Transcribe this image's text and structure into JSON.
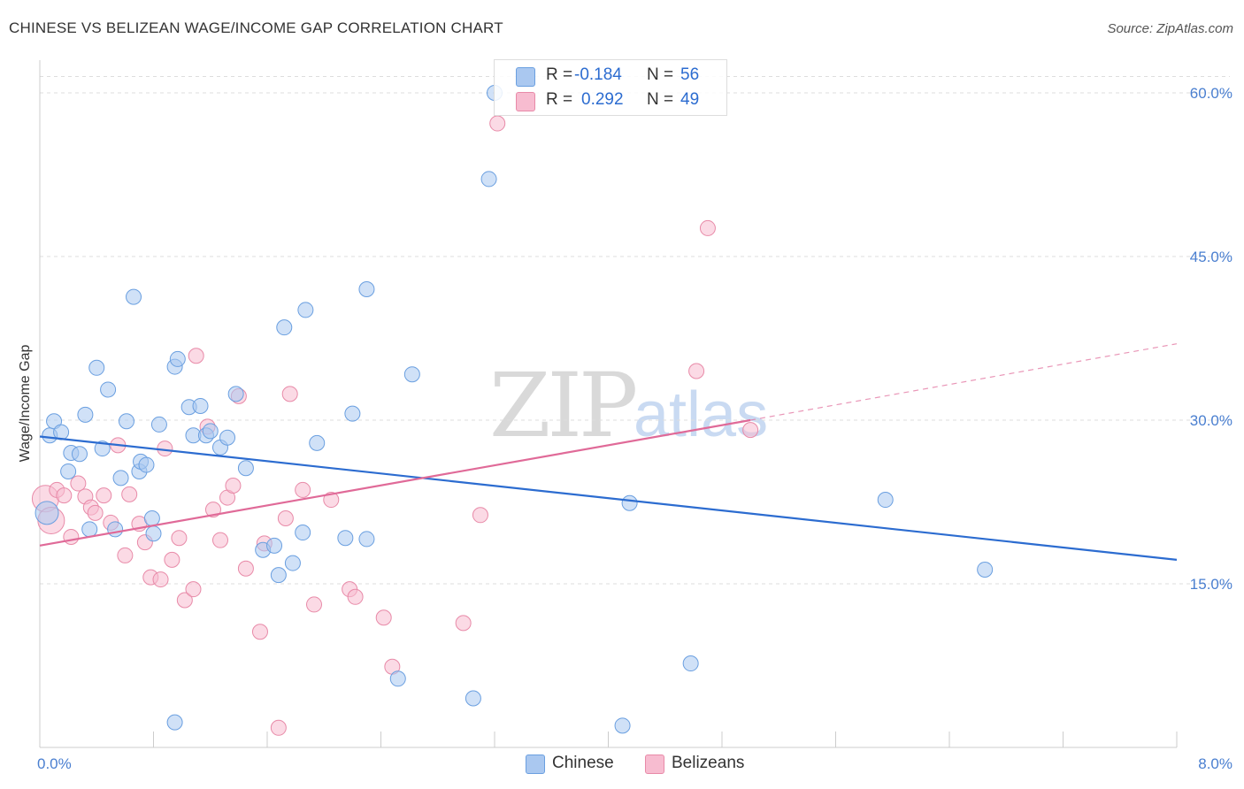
{
  "header": {
    "title": "CHINESE VS BELIZEAN WAGE/INCOME GAP CORRELATION CHART",
    "source": "Source: ZipAtlas.com"
  },
  "watermark": {
    "zip": "ZIP",
    "atlas": "atlas"
  },
  "legend": {
    "rows": [
      {
        "r_label": "R =",
        "r_value": "-0.184",
        "n_label": "N =",
        "n_value": "56"
      },
      {
        "r_label": "R =",
        "r_value": "0.292",
        "n_label": "N =",
        "n_value": "49"
      }
    ]
  },
  "bottom_legend": {
    "chinese": "Chinese",
    "belizeans": "Belizeans"
  },
  "colors": {
    "chinese_fill": "#aac8f0",
    "chinese_stroke": "#6a9fe0",
    "chinese_line": "#2c6cd0",
    "belizean_fill": "#f7bcd0",
    "belizean_stroke": "#e88aa8",
    "belizean_line": "#e06a98",
    "grid": "#dddddd",
    "tick_text": "#4a7fd0"
  },
  "chart_data": {
    "type": "scatter",
    "ylabel": "Wage/Income Gap",
    "xlabel": "",
    "xlim": [
      0,
      8
    ],
    "ylim": [
      0,
      63
    ],
    "y_ticks": [
      15,
      30,
      45,
      60
    ],
    "y_tick_labels": [
      "15.0%",
      "30.0%",
      "45.0%",
      "60.0%"
    ],
    "x_tick_labels": [
      "0.0%",
      "8.0%"
    ],
    "series": [
      {
        "name": "Chinese",
        "points": [
          [
            0.05,
            21.5
          ],
          [
            0.07,
            28.6
          ],
          [
            0.1,
            29.9
          ],
          [
            0.15,
            28.9
          ],
          [
            0.2,
            25.3
          ],
          [
            0.22,
            27.0
          ],
          [
            0.28,
            26.9
          ],
          [
            0.32,
            30.5
          ],
          [
            0.35,
            20.0
          ],
          [
            0.4,
            34.8
          ],
          [
            0.44,
            27.4
          ],
          [
            0.48,
            32.8
          ],
          [
            0.53,
            20.0
          ],
          [
            0.57,
            24.7
          ],
          [
            0.61,
            29.9
          ],
          [
            0.66,
            41.3
          ],
          [
            0.7,
            25.3
          ],
          [
            0.71,
            26.2
          ],
          [
            0.75,
            25.9
          ],
          [
            0.8,
            19.6
          ],
          [
            0.79,
            21.0
          ],
          [
            0.84,
            29.6
          ],
          [
            0.95,
            34.9
          ],
          [
            0.97,
            35.6
          ],
          [
            1.05,
            31.2
          ],
          [
            1.08,
            28.6
          ],
          [
            1.13,
            31.3
          ],
          [
            1.17,
            28.6
          ],
          [
            1.2,
            29.0
          ],
          [
            1.27,
            27.5
          ],
          [
            1.32,
            28.4
          ],
          [
            1.38,
            32.4
          ],
          [
            1.45,
            25.6
          ],
          [
            1.57,
            18.1
          ],
          [
            1.65,
            18.5
          ],
          [
            1.68,
            15.8
          ],
          [
            1.72,
            38.5
          ],
          [
            1.78,
            16.9
          ],
          [
            1.85,
            19.7
          ],
          [
            1.87,
            40.1
          ],
          [
            1.95,
            27.9
          ],
          [
            2.15,
            19.2
          ],
          [
            2.2,
            30.6
          ],
          [
            2.3,
            42.0
          ],
          [
            2.3,
            19.1
          ],
          [
            2.52,
            6.3
          ],
          [
            2.62,
            34.2
          ],
          [
            3.05,
            4.5
          ],
          [
            3.16,
            52.1
          ],
          [
            3.2,
            60.0
          ],
          [
            0.95,
            2.3
          ],
          [
            4.1,
            2.0
          ],
          [
            4.15,
            22.4
          ],
          [
            4.58,
            7.7
          ],
          [
            5.95,
            22.7
          ],
          [
            6.65,
            16.3
          ]
        ],
        "trend": [
          [
            0,
            28.5
          ],
          [
            8,
            17.2
          ]
        ]
      },
      {
        "name": "Belizeans",
        "points": [
          [
            0.04,
            22.8
          ],
          [
            0.08,
            20.8
          ],
          [
            0.12,
            23.6
          ],
          [
            0.17,
            23.1
          ],
          [
            0.22,
            19.3
          ],
          [
            0.27,
            24.2
          ],
          [
            0.32,
            23.0
          ],
          [
            0.36,
            22.0
          ],
          [
            0.39,
            21.5
          ],
          [
            0.45,
            23.1
          ],
          [
            0.5,
            20.6
          ],
          [
            0.55,
            27.7
          ],
          [
            0.6,
            17.6
          ],
          [
            0.63,
            23.2
          ],
          [
            0.7,
            20.5
          ],
          [
            0.74,
            18.8
          ],
          [
            0.78,
            15.6
          ],
          [
            0.85,
            15.4
          ],
          [
            0.88,
            27.4
          ],
          [
            0.93,
            17.2
          ],
          [
            0.98,
            19.2
          ],
          [
            1.02,
            13.5
          ],
          [
            1.08,
            14.5
          ],
          [
            1.1,
            35.9
          ],
          [
            1.18,
            29.4
          ],
          [
            1.22,
            21.8
          ],
          [
            1.27,
            19.0
          ],
          [
            1.32,
            22.9
          ],
          [
            1.36,
            24.0
          ],
          [
            1.4,
            32.2
          ],
          [
            1.45,
            16.4
          ],
          [
            1.55,
            10.6
          ],
          [
            1.58,
            18.7
          ],
          [
            1.68,
            1.8
          ],
          [
            1.73,
            21.0
          ],
          [
            1.76,
            32.4
          ],
          [
            1.85,
            23.6
          ],
          [
            1.93,
            13.1
          ],
          [
            2.05,
            22.7
          ],
          [
            2.18,
            14.5
          ],
          [
            2.22,
            13.8
          ],
          [
            2.42,
            11.9
          ],
          [
            2.48,
            7.4
          ],
          [
            2.98,
            11.4
          ],
          [
            3.1,
            21.3
          ],
          [
            3.22,
            57.2
          ],
          [
            4.62,
            34.5
          ],
          [
            4.7,
            47.6
          ],
          [
            5.0,
            29.1
          ]
        ],
        "trend": [
          [
            0,
            18.5
          ],
          [
            5.0,
            30.0
          ]
        ],
        "trend_dashed": [
          [
            5.0,
            30.0
          ],
          [
            8.0,
            37.0
          ]
        ]
      }
    ]
  }
}
